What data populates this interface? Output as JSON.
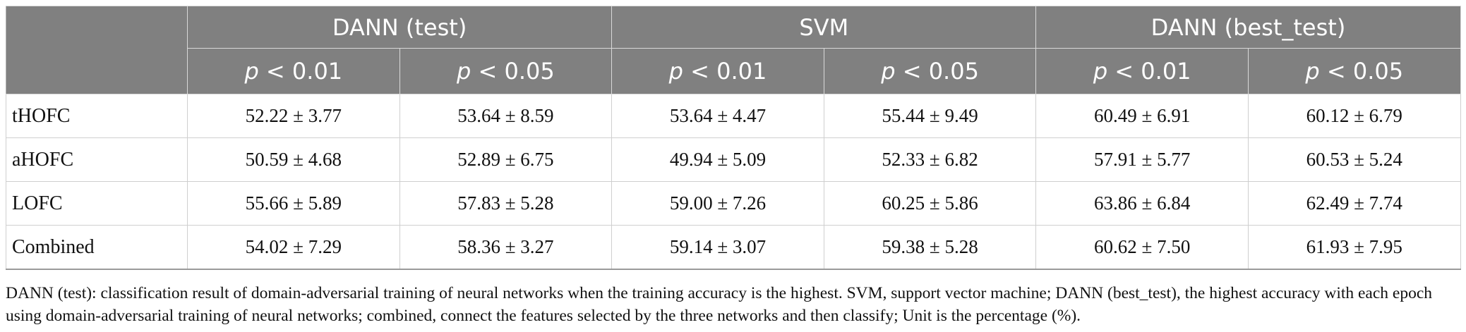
{
  "table": {
    "group_headers": [
      "DANN (test)",
      "SVM",
      "DANN (best_test)"
    ],
    "sub_headers": [
      {
        "p": "p",
        "rest": " < 0.01"
      },
      {
        "p": "p",
        "rest": " < 0.05"
      },
      {
        "p": "p",
        "rest": " < 0.01"
      },
      {
        "p": "p",
        "rest": " < 0.05"
      },
      {
        "p": "p",
        "rest": " < 0.01"
      },
      {
        "p": "p",
        "rest": " < 0.05"
      }
    ],
    "rows": [
      {
        "label": "tHOFC",
        "cells": [
          "52.22 ± 3.77",
          "53.64 ± 8.59",
          "53.64 ± 4.47",
          "55.44 ± 9.49",
          "60.49 ± 6.91",
          "60.12 ± 6.79"
        ]
      },
      {
        "label": "aHOFC",
        "cells": [
          "50.59 ± 4.68",
          "52.89 ± 6.75",
          "49.94 ± 5.09",
          "52.33 ± 6.82",
          "57.91 ± 5.77",
          "60.53 ± 5.24"
        ]
      },
      {
        "label": "LOFC",
        "cells": [
          "55.66 ± 5.89",
          "57.83 ± 5.28",
          "59.00 ± 7.26",
          "60.25 ± 5.86",
          "63.86 ± 6.84",
          "62.49 ± 7.74"
        ]
      },
      {
        "label": "Combined",
        "cells": [
          "54.02 ± 7.29",
          "58.36 ± 3.27",
          "59.14 ± 3.07",
          "59.38 ± 5.28",
          "60.62 ± 7.50",
          "61.93 ± 7.95"
        ]
      }
    ]
  },
  "footnote": "DANN (test): classification result of domain-adversarial training of neural networks when the training accuracy is the highest. SVM, support vector machine; DANN (best_test), the highest accuracy with each epoch using domain-adversarial training of neural networks; combined, connect the features selected by the three networks and then classify; Unit is the percentage (%).",
  "colors": {
    "header_bg": "#808080",
    "header_text": "#ffffff",
    "grid": "#cfcfcf"
  }
}
